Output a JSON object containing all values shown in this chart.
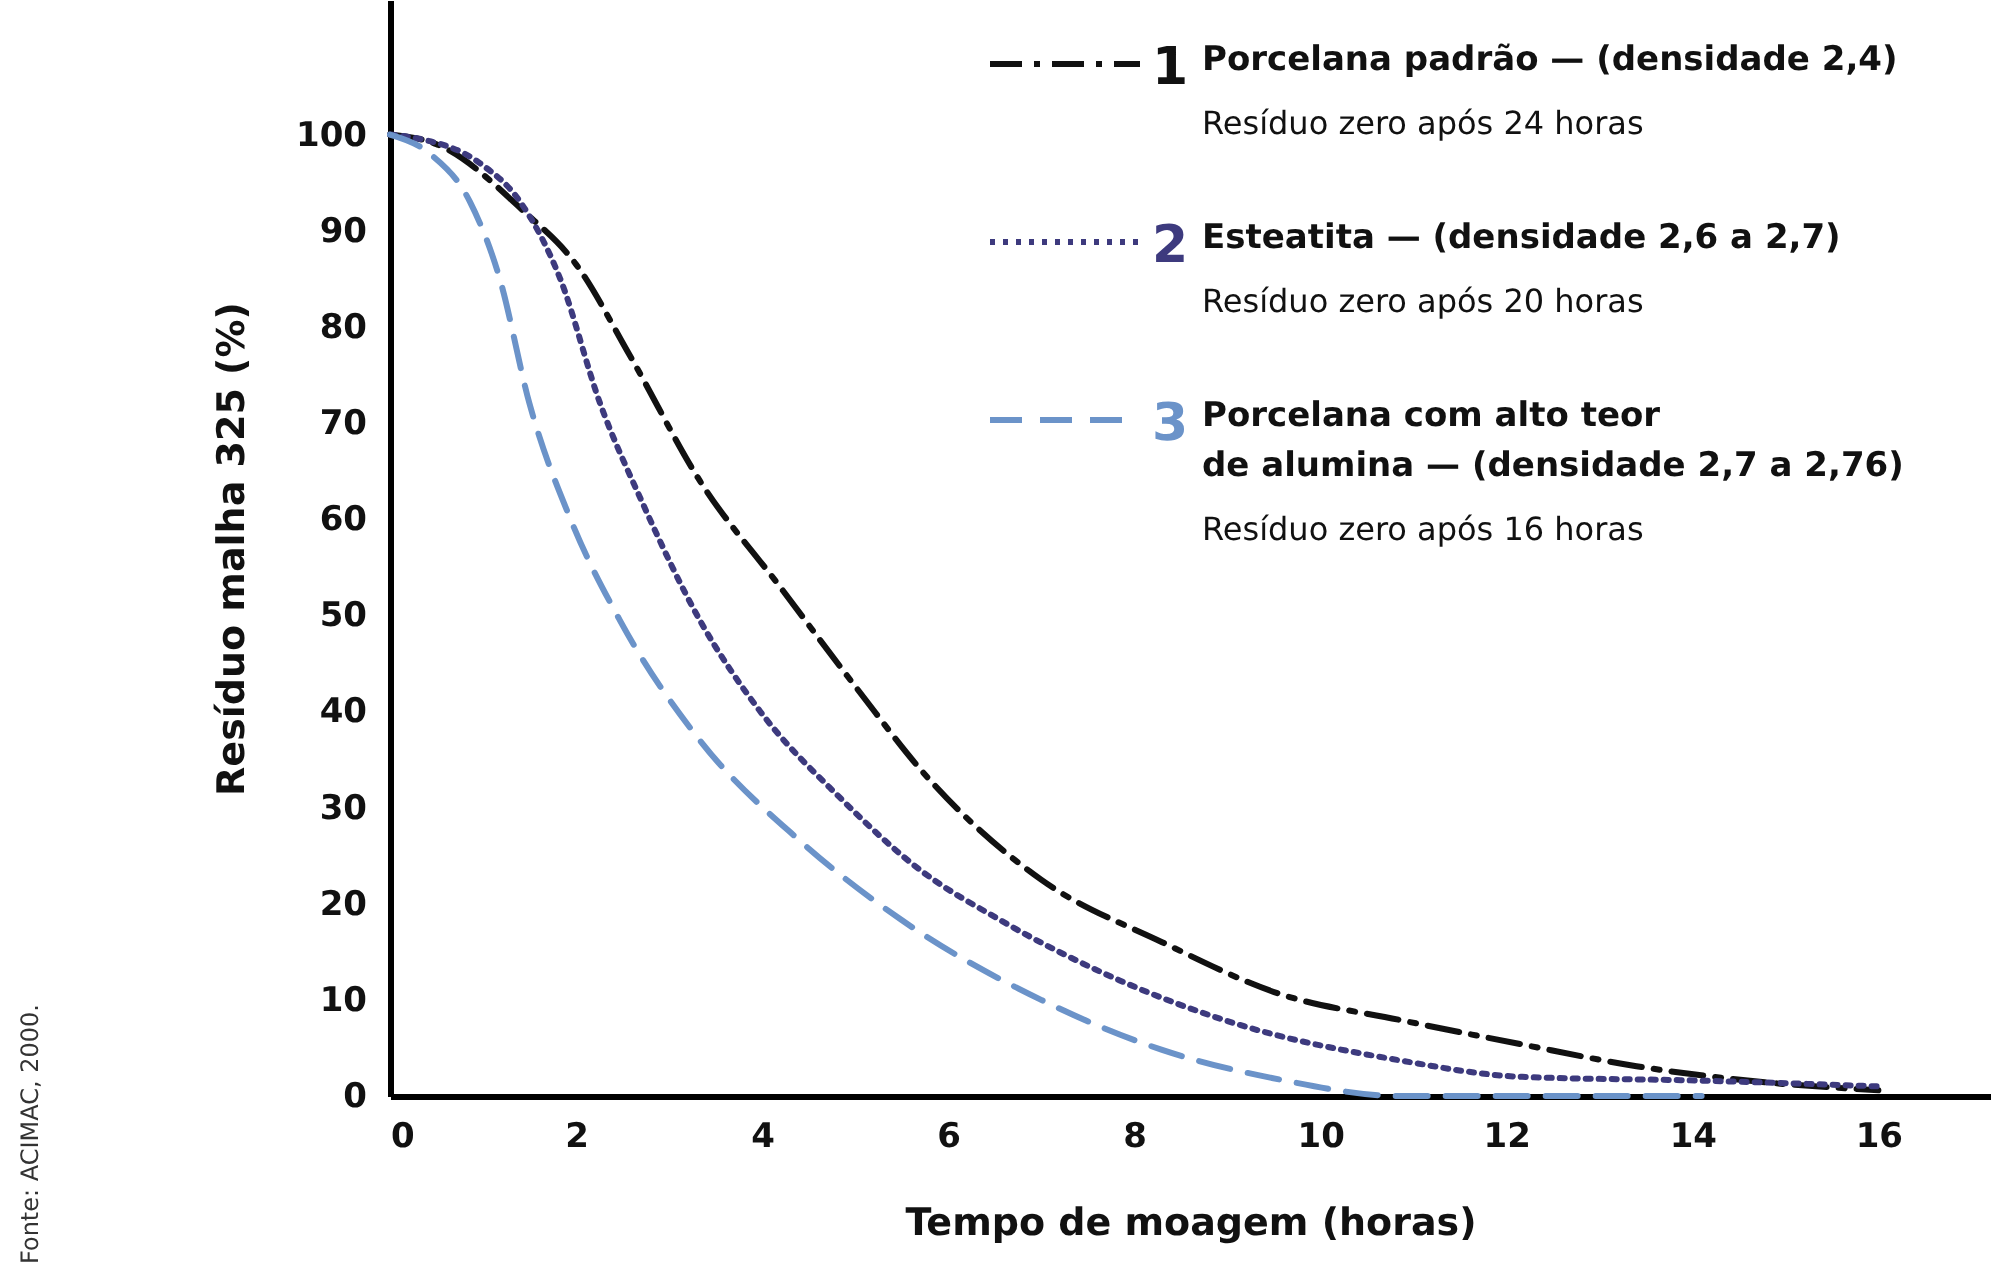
{
  "chart_data": {
    "type": "line",
    "xlabel": "Tempo de moagem (horas)",
    "ylabel": "Resíduo malha 325 (%)",
    "xlim": [
      0,
      17.2
    ],
    "ylim": [
      0,
      114
    ],
    "xticks": [
      0,
      2,
      4,
      6,
      8,
      10,
      12,
      14,
      16
    ],
    "yticks": [
      0,
      10,
      20,
      30,
      40,
      50,
      60,
      70,
      80,
      90,
      100
    ],
    "legend": "top right",
    "series": [
      {
        "name": "Porcelana padrão — (densidade 2,4)",
        "color": "#111111",
        "line_style": "dashdot",
        "x": [
          0,
          0.5,
          1.44,
          2.0,
          2.58,
          3.33,
          4.19,
          5.05,
          5.7,
          7,
          8.3,
          9.57,
          10.86,
          12.15,
          13.4,
          14.7,
          16
        ],
        "values": [
          100,
          99,
          92,
          86.5,
          77,
          64,
          53,
          42,
          34,
          22.5,
          16,
          10.6,
          7.9,
          5.4,
          3.1,
          1.5,
          0.6
        ]
      },
      {
        "name": "Esteatita — (densidade 2,6 a 2,7)",
        "color": "#3d3a7e",
        "line_style": "dotted",
        "x": [
          0,
          0.3,
          0.97,
          1.4,
          1.83,
          2.26,
          2.7,
          3.33,
          3.98,
          4.84,
          5.7,
          6.56,
          7.85,
          9.1,
          10.86,
          12.15,
          14.1,
          16
        ],
        "values": [
          100,
          99.6,
          97,
          93,
          85,
          72,
          62,
          49.5,
          40,
          31,
          23.5,
          18.3,
          12,
          7.5,
          3.7,
          2,
          1.6,
          1
        ]
      },
      {
        "name": "Porcelana com alto teor\nde alumina — (densidade 2,7 a 2,76)",
        "color": "#6b93c9",
        "line_style": "dashed",
        "x": [
          0,
          0.43,
          0.86,
          1.18,
          1.5,
          1.94,
          2.47,
          3.33,
          4.4,
          5.5,
          7,
          8.3,
          9.57,
          10.86,
          14.1
        ],
        "values": [
          100,
          98,
          93,
          85,
          72,
          60,
          49.5,
          37,
          26.6,
          18.3,
          10,
          4.8,
          1.7,
          0,
          0
        ]
      }
    ],
    "annotations": [
      "1",
      "2",
      "3",
      "Resíduo zero após 24 horas",
      "Resíduo zero após 20 horas",
      "Resíduo zero após 16 horas",
      "Fonte: ACIMAC, 2000."
    ]
  }
}
